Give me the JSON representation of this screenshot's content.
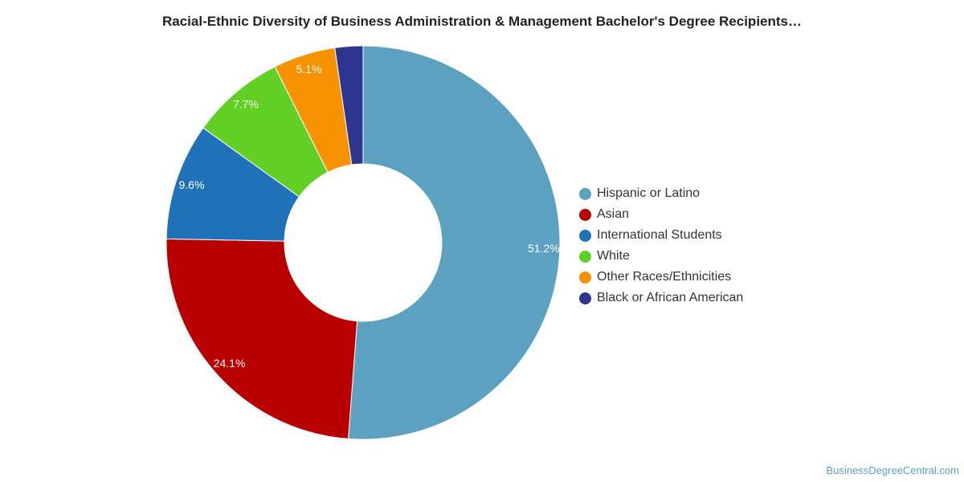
{
  "chart_data": {
    "type": "pie",
    "title": "Racial-Ethnic Diversity of Business Administration & Management Bachelor's Degree Recipients…",
    "donut": true,
    "legend_position": "right",
    "slices": [
      {
        "label": "Hispanic or Latino",
        "value": 51.2,
        "display": "51.2%",
        "color": "#5ca2c0"
      },
      {
        "label": "Asian",
        "value": 24.1,
        "display": "24.1%",
        "color": "#b80000"
      },
      {
        "label": "International Students",
        "value": 9.6,
        "display": "9.6%",
        "color": "#1f72b8"
      },
      {
        "label": "White",
        "value": 7.7,
        "display": "7.7%",
        "color": "#62cf25"
      },
      {
        "label": "Other Races/Ethnicities",
        "value": 5.1,
        "display": "5.1%",
        "color": "#f79200"
      },
      {
        "label": "Black or African American",
        "value": 2.3,
        "display": "",
        "color": "#2e3590"
      }
    ]
  },
  "watermark": "BusinessDegreeCentral.com"
}
